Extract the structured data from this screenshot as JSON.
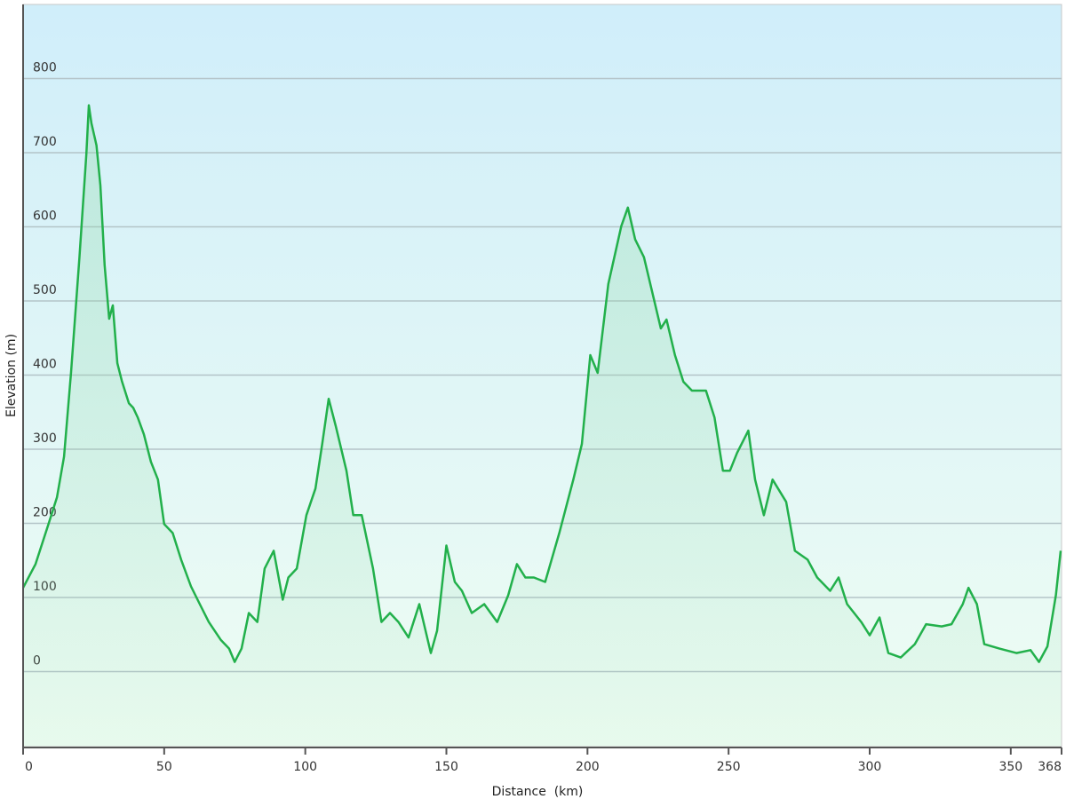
{
  "chart_data": {
    "type": "area",
    "title": "",
    "xlabel": "Distance  (km)",
    "ylabel": "Elevation (m)",
    "xlim": [
      0,
      368
    ],
    "ylim": [
      -100,
      900
    ],
    "x_ticks": [
      0,
      50,
      100,
      150,
      200,
      250,
      300,
      350,
      368
    ],
    "y_ticks": [
      0,
      100,
      200,
      300,
      400,
      500,
      600,
      700,
      800
    ],
    "grid": "horizontal",
    "colors": {
      "line": "#22b04b",
      "fill": "#8fd9a8",
      "bg_top": "#d0eefa",
      "bg_bottom": "#effdf3",
      "grid": "#b4c4c8"
    },
    "series": [
      {
        "x": [
          0,
          4.4,
          9,
          12,
          14.5,
          17,
          20,
          22.4,
          23.3,
          24.2,
          26,
          27.4,
          28.9,
          30.5,
          31.8,
          33.4,
          35,
          37.5,
          39,
          40.6,
          42.8,
          45.3,
          47.8,
          50,
          53,
          56,
          59.5,
          62.6,
          65.8,
          70,
          73,
          75,
          77.4,
          80,
          83,
          85.6,
          88.8,
          92,
          94,
          97,
          100.4,
          103.6,
          106,
          108.3,
          110.8,
          114.6,
          117,
          120,
          124,
          127,
          130,
          133,
          136.6,
          140.4,
          144.5,
          146.7,
          150,
          153,
          155.5,
          159,
          163.4,
          168,
          171.9,
          175,
          178,
          181,
          185,
          190,
          195,
          198,
          201,
          203.6,
          207.4,
          212,
          214.3,
          216.9,
          220,
          223,
          226,
          228,
          231,
          234,
          237,
          242,
          245,
          248,
          250.5,
          253,
          257,
          259.4,
          262.5,
          265.6,
          270.4,
          273.5,
          278,
          281.4,
          286,
          289,
          292,
          297,
          300,
          303.5,
          306.6,
          311,
          316,
          320,
          325.5,
          329,
          333,
          335,
          338,
          340.6,
          346,
          352,
          357,
          360,
          363,
          366,
          367.7
        ],
        "y": [
          113,
          145,
          199,
          235,
          290,
          404,
          560,
          698,
          764,
          740,
          710,
          656,
          548,
          476,
          494,
          416,
          392,
          362,
          356,
          343,
          320,
          283,
          259,
          199,
          187,
          151,
          115,
          91,
          67,
          43,
          31,
          13,
          31,
          79,
          67,
          139,
          163,
          97,
          127,
          139,
          211,
          247,
          307,
          368,
          331,
          271,
          211,
          211,
          139,
          67,
          79,
          67,
          46,
          91,
          25,
          55,
          170,
          121,
          109,
          79,
          91,
          67,
          103,
          145,
          127,
          127,
          121,
          187,
          259,
          307,
          427,
          403,
          523,
          601,
          626,
          583,
          559,
          511,
          463,
          475,
          427,
          391,
          379,
          379,
          343,
          271,
          271,
          295,
          325,
          259,
          211,
          259,
          229,
          163,
          151,
          127,
          109,
          127,
          91,
          67,
          49,
          73,
          25,
          19,
          37,
          64,
          61,
          64,
          91,
          113,
          91,
          37,
          31,
          25,
          29,
          13,
          34,
          103,
          163
        ]
      }
    ]
  }
}
